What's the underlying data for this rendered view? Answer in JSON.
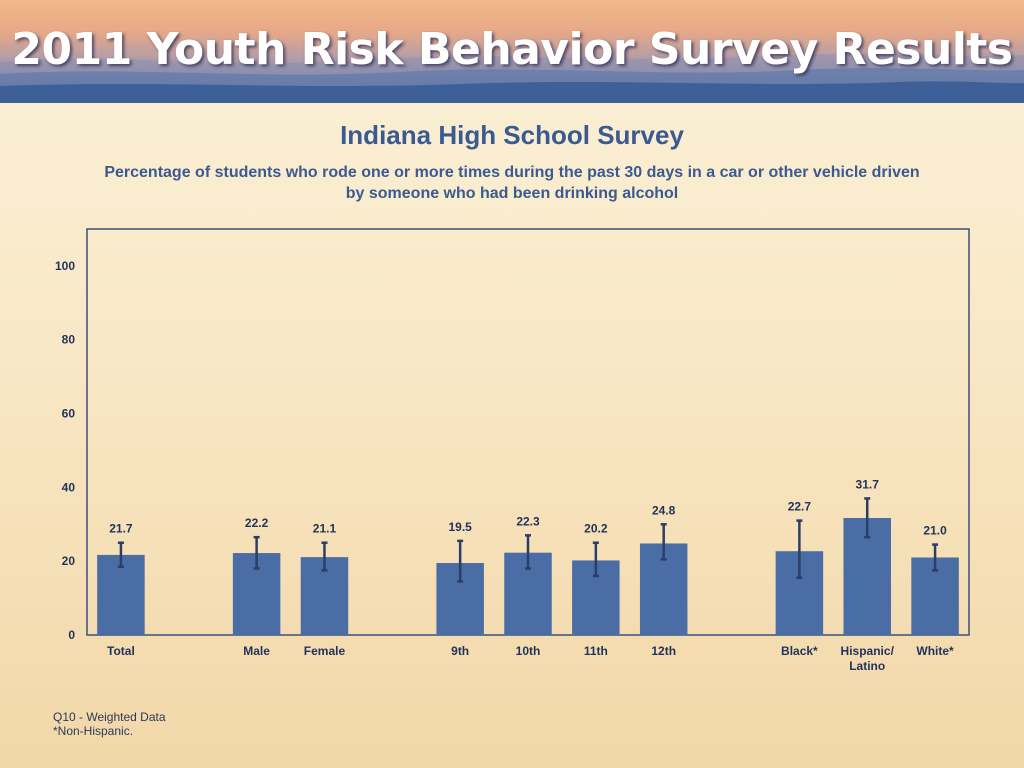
{
  "banner": {
    "title": "2011 Youth Risk Behavior Survey Results"
  },
  "chart_data": {
    "type": "bar",
    "title": "Indiana High School Survey",
    "subtitle_lines": [
      "Percentage of students who rode one or more times during the past 30 days in a car or other vehicle driven",
      "by someone who had been drinking alcohol"
    ],
    "xlabel": "",
    "ylabel": "",
    "ylim": [
      0,
      110
    ],
    "yticks": [
      0,
      20,
      40,
      60,
      80,
      100
    ],
    "grid": false,
    "legend": "none",
    "bar_color": "#4a6da6",
    "error_color": "#2b3f66",
    "groups": [
      {
        "categories": [
          [
            "Total"
          ]
        ]
      },
      {
        "categories": [
          [
            "Male"
          ],
          [
            "Female"
          ]
        ]
      },
      {
        "categories": [
          [
            "9th"
          ],
          [
            "10th"
          ],
          [
            "11th"
          ],
          [
            "12th"
          ]
        ]
      },
      {
        "categories": [
          [
            "Black*"
          ],
          [
            "Hispanic/",
            "Latino"
          ],
          [
            "White*"
          ]
        ]
      }
    ],
    "values": [
      21.7,
      22.2,
      21.1,
      19.5,
      22.3,
      20.2,
      24.8,
      22.7,
      31.7,
      21.0
    ],
    "value_labels": [
      "21.7",
      "22.2",
      "21.1",
      "19.5",
      "22.3",
      "20.2",
      "24.8",
      "22.7",
      "31.7",
      "21.0"
    ],
    "error_low": [
      18.5,
      18.0,
      17.5,
      14.5,
      18.0,
      16.0,
      20.5,
      15.5,
      26.5,
      17.5
    ],
    "error_high": [
      25.0,
      26.5,
      25.0,
      25.5,
      27.0,
      25.0,
      30.0,
      31.0,
      37.0,
      24.5
    ]
  },
  "footnotes": [
    "Q10 - Weighted Data",
    "*Non-Hispanic."
  ]
}
